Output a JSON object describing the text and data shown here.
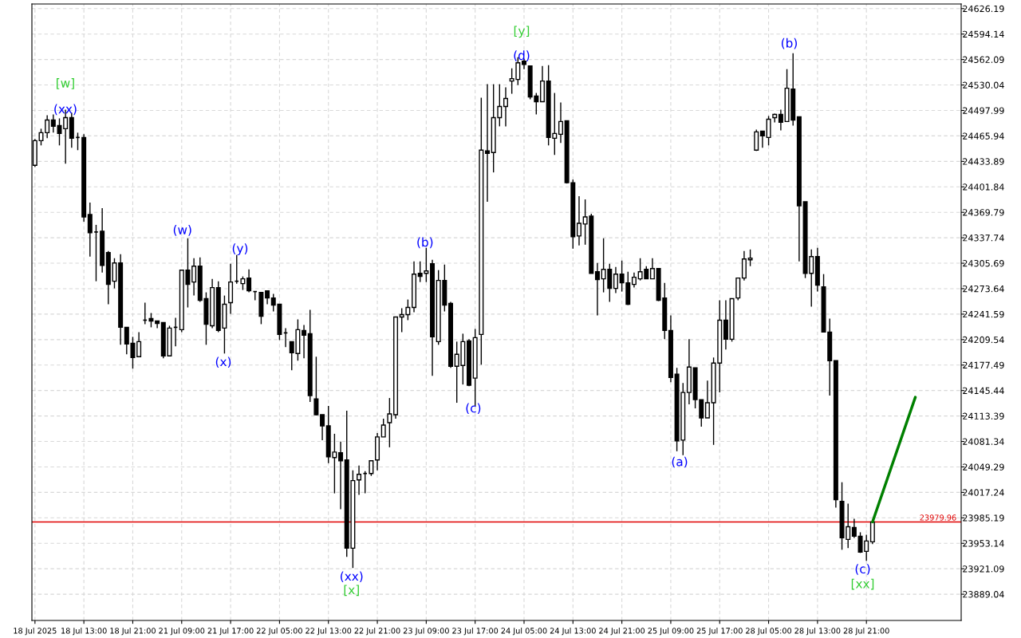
{
  "chart_data": {
    "type": "candlestick",
    "categories": [
      "18 Jul 2025",
      null,
      null,
      null,
      null,
      null,
      null,
      null,
      "18 Jul 13:00",
      null,
      null,
      null,
      null,
      null,
      null,
      null,
      "18 Jul 21:00",
      null,
      null,
      null,
      null,
      null,
      null,
      null,
      "21 Jul 09:00",
      null,
      null,
      null,
      null,
      null,
      null,
      null,
      "21 Jul 17:00",
      null,
      null,
      null,
      null,
      null,
      null,
      null,
      "22 Jul 05:00",
      null,
      null,
      null,
      null,
      null,
      null,
      null,
      "22 Jul 13:00",
      null,
      null,
      null,
      null,
      null,
      null,
      null,
      "22 Jul 21:00",
      null,
      null,
      null,
      null,
      null,
      null,
      null,
      "23 Jul 09:00",
      null,
      null,
      null,
      null,
      null,
      null,
      null,
      "23 Jul 17:00",
      null,
      null,
      null,
      null,
      null,
      null,
      null,
      "24 Jul 05:00",
      null,
      null,
      null,
      null,
      null,
      null,
      null,
      "24 Jul 13:00",
      null,
      null,
      null,
      null,
      null,
      null,
      null,
      "24 Jul 21:00",
      null,
      null,
      null,
      null,
      null,
      null,
      null,
      "25 Jul 09:00",
      null,
      null,
      null,
      null,
      null,
      null,
      null,
      "25 Jul 17:00",
      null,
      null,
      null,
      null,
      null,
      null,
      null,
      "28 Jul 05:00",
      null,
      null,
      null,
      null,
      null,
      null,
      null,
      "28 Jul 13:00",
      null,
      null,
      null,
      null,
      null,
      null,
      null,
      "28 Jul 21:00",
      null,
      null,
      null,
      null,
      null,
      null,
      null,
      null
    ],
    "ohlc": [
      [
        24429,
        24462,
        24427,
        24460
      ],
      [
        24460,
        24475,
        24454,
        24470
      ],
      [
        24470,
        24492,
        24463,
        24486
      ],
      [
        24486,
        24493,
        24470,
        24478
      ],
      [
        24479,
        24488,
        24454,
        24469
      ],
      [
        24475,
        24499,
        24431,
        24489
      ],
      [
        24489,
        24495,
        24451,
        24463
      ],
      [
        24464,
        24470,
        24448,
        24464
      ],
      [
        24464,
        24468,
        24358,
        24364
      ],
      [
        24367,
        24382,
        24314,
        24344
      ],
      [
        24345,
        24354,
        24283,
        24345
      ],
      [
        24346,
        24375,
        24294,
        24303
      ],
      [
        24319,
        24321,
        24254,
        24279
      ],
      [
        24283,
        24312,
        24274,
        24306
      ],
      [
        24306,
        24317,
        24203,
        24225
      ],
      [
        24225,
        24225,
        24191,
        24204
      ],
      [
        24205,
        24213,
        24173,
        24187
      ],
      [
        24188,
        24219,
        24188,
        24207
      ],
      [
        24234,
        24256,
        24229,
        24234
      ],
      [
        24236,
        24243,
        24225,
        24233
      ],
      [
        24233,
        24233,
        24224,
        24230
      ],
      [
        24231,
        24231,
        24186,
        24189
      ],
      [
        24189,
        24227,
        24189,
        24224
      ],
      [
        24225,
        24237,
        24201,
        24225
      ],
      [
        24222,
        24297,
        24219,
        24297
      ],
      [
        24297,
        24337,
        24250,
        24279
      ],
      [
        24282,
        24312,
        24265,
        24302
      ],
      [
        24302,
        24313,
        24257,
        24259
      ],
      [
        24261,
        24269,
        24203,
        24229
      ],
      [
        24227,
        24286,
        24224,
        24275
      ],
      [
        24275,
        24283,
        24219,
        24221
      ],
      [
        24224,
        24265,
        24192,
        24254
      ],
      [
        24256,
        24305,
        24242,
        24282
      ],
      [
        24283,
        24316,
        24280,
        24283
      ],
      [
        24280,
        24289,
        24272,
        24286
      ],
      [
        24287,
        24298,
        24269,
        24271
      ],
      [
        24270,
        24270,
        24259,
        24270
      ],
      [
        24269,
        24269,
        24229,
        24239
      ],
      [
        24271,
        24271,
        24254,
        24262
      ],
      [
        24262,
        24267,
        24245,
        24253
      ],
      [
        24254,
        24254,
        24209,
        24216
      ],
      [
        24218,
        24224,
        24200,
        24218
      ],
      [
        24207,
        24207,
        24171,
        24193
      ],
      [
        24192,
        24235,
        24183,
        24222
      ],
      [
        24221,
        24228,
        24186,
        24215
      ],
      [
        24217,
        24247,
        24131,
        24139
      ],
      [
        24135,
        24188,
        24114,
        24115
      ],
      [
        24115,
        24115,
        24083,
        24101
      ],
      [
        24101,
        24126,
        24054,
        24062
      ],
      [
        24061,
        24091,
        24016,
        24068
      ],
      [
        24067,
        24081,
        23996,
        24057
      ],
      [
        24058,
        24120,
        23936,
        23947
      ],
      [
        23947,
        24045,
        23922,
        24032
      ],
      [
        24033,
        24051,
        24014,
        24040
      ],
      [
        24041,
        24044,
        24016,
        24041
      ],
      [
        24041,
        24057,
        24038,
        24057
      ],
      [
        24058,
        24092,
        24045,
        24087
      ],
      [
        24087,
        24110,
        24087,
        24102
      ],
      [
        24105,
        24136,
        24074,
        24116
      ],
      [
        24115,
        24238,
        24110,
        24238
      ],
      [
        24238,
        24249,
        24219,
        24241
      ],
      [
        24241,
        24260,
        24234,
        24250
      ],
      [
        24250,
        24308,
        24244,
        24292
      ],
      [
        24293,
        24308,
        24282,
        24289
      ],
      [
        24293,
        24325,
        24282,
        24296
      ],
      [
        24305,
        24310,
        24164,
        24213
      ],
      [
        24207,
        24297,
        24203,
        24284
      ],
      [
        24284,
        24304,
        24245,
        24253
      ],
      [
        24255,
        24257,
        24174,
        24176
      ],
      [
        24176,
        24207,
        24130,
        24191
      ],
      [
        24177,
        24217,
        24153,
        24207
      ],
      [
        24208,
        24210,
        24151,
        24152
      ],
      [
        24161,
        24223,
        24126,
        24212
      ],
      [
        24216,
        24514,
        24178,
        24448
      ],
      [
        24447,
        24531,
        24383,
        24444
      ],
      [
        24445,
        24531,
        24420,
        24489
      ],
      [
        24489,
        24531,
        24478,
        24503
      ],
      [
        24503,
        24527,
        24478,
        24513
      ],
      [
        24535,
        24551,
        24519,
        24538
      ],
      [
        24537,
        24565,
        24530,
        24558
      ],
      [
        24560,
        24563,
        24550,
        24556
      ],
      [
        24554,
        24554,
        24512,
        24515
      ],
      [
        24516,
        24520,
        24493,
        24509
      ],
      [
        24509,
        24554,
        24509,
        24535
      ],
      [
        24535,
        24555,
        24454,
        24464
      ],
      [
        24463,
        24520,
        24442,
        24469
      ],
      [
        24468,
        24508,
        24457,
        24484
      ],
      [
        24485,
        24485,
        24406,
        24407
      ],
      [
        24407,
        24411,
        24324,
        24339
      ],
      [
        24340,
        24390,
        24328,
        24356
      ],
      [
        24355,
        24386,
        24329,
        24364
      ],
      [
        24365,
        24368,
        24293,
        24293
      ],
      [
        24295,
        24306,
        24240,
        24285
      ],
      [
        24286,
        24337,
        24269,
        24298
      ],
      [
        24298,
        24305,
        24257,
        24274
      ],
      [
        24274,
        24301,
        24268,
        24292
      ],
      [
        24292,
        24309,
        24270,
        24281
      ],
      [
        24281,
        24295,
        24253,
        24254
      ],
      [
        24279,
        24294,
        24275,
        24288
      ],
      [
        24286,
        24312,
        24284,
        24295
      ],
      [
        24298,
        24302,
        24286,
        24286
      ],
      [
        24286,
        24312,
        24286,
        24299
      ],
      [
        24299,
        24299,
        24258,
        24259
      ],
      [
        24262,
        24281,
        24210,
        24221
      ],
      [
        24221,
        24240,
        24156,
        24162
      ],
      [
        24166,
        24174,
        24069,
        24082
      ],
      [
        24083,
        24155,
        24064,
        24143
      ],
      [
        24143,
        24210,
        24128,
        24175
      ],
      [
        24174,
        24174,
        24123,
        24134
      ],
      [
        24134,
        24134,
        24100,
        24111
      ],
      [
        24111,
        24158,
        24111,
        24130
      ],
      [
        24130,
        24187,
        24077,
        24180
      ],
      [
        24180,
        24259,
        24143,
        24234
      ],
      [
        24234,
        24259,
        24197,
        24210
      ],
      [
        24210,
        24261,
        24207,
        24261
      ],
      [
        24262,
        24287,
        24259,
        24287
      ],
      [
        24287,
        24321,
        24284,
        24311
      ],
      [
        24310,
        24323,
        24302,
        24312
      ],
      [
        24448,
        24474,
        24447,
        24471
      ],
      [
        24472,
        24472,
        24451,
        24466
      ],
      [
        24464,
        24491,
        24454,
        24487
      ],
      [
        24489,
        24494,
        24483,
        24493
      ],
      [
        24493,
        24499,
        24473,
        24483
      ],
      [
        24484,
        24550,
        24484,
        24526
      ],
      [
        24525,
        24570,
        24479,
        24486
      ],
      [
        24490,
        24490,
        24308,
        24378
      ],
      [
        24383,
        24383,
        24287,
        24293
      ],
      [
        24293,
        24323,
        24251,
        24314
      ],
      [
        24314,
        24325,
        24270,
        24278
      ],
      [
        24276,
        24292,
        24219,
        24219
      ],
      [
        24219,
        24236,
        24139,
        24183
      ],
      [
        24183,
        24183,
        23998,
        24008
      ],
      [
        24006,
        24030,
        23945,
        23960
      ],
      [
        23958,
        24003,
        23947,
        23974
      ],
      [
        23973,
        23984,
        23960,
        23962
      ],
      [
        23962,
        23967,
        23941,
        23942
      ],
      [
        23943,
        23964,
        23931,
        23956
      ],
      [
        23955,
        23980,
        23952,
        23980
      ],
      null,
      null,
      null,
      null,
      null,
      null,
      null
    ],
    "series": [
      {
        "type": "line",
        "color": "#008000",
        "values": [
          null,
          null,
          null,
          null,
          null,
          null,
          null,
          null,
          null,
          null,
          null,
          null,
          null,
          null,
          null,
          null,
          null,
          null,
          null,
          null,
          null,
          null,
          null,
          null,
          null,
          null,
          null,
          null,
          null,
          null,
          null,
          null,
          null,
          null,
          null,
          null,
          null,
          null,
          null,
          null,
          null,
          null,
          null,
          null,
          null,
          null,
          null,
          null,
          null,
          null,
          null,
          null,
          null,
          null,
          null,
          null,
          null,
          null,
          null,
          null,
          null,
          null,
          null,
          null,
          null,
          null,
          null,
          null,
          null,
          null,
          null,
          null,
          null,
          null,
          null,
          null,
          null,
          null,
          null,
          null,
          null,
          null,
          null,
          null,
          null,
          null,
          null,
          null,
          null,
          null,
          null,
          null,
          null,
          null,
          null,
          null,
          null,
          null,
          null,
          null,
          null,
          null,
          null,
          null,
          null,
          null,
          null,
          null,
          null,
          null,
          null,
          null,
          null,
          null,
          null,
          null,
          null,
          null,
          null,
          null,
          null,
          null,
          null,
          null,
          null,
          null,
          null,
          null,
          null,
          null,
          null,
          null,
          null,
          null,
          null,
          null,
          null,
          23980,
          null,
          null,
          null,
          null,
          null,
          null,
          24137
        ]
      }
    ],
    "ylim": [
      23856,
      24632
    ],
    "yticks": [
      24626.19,
      24594.14,
      24562.09,
      24530.04,
      24497.99,
      24465.94,
      24433.89,
      24401.84,
      24369.79,
      24337.74,
      24305.69,
      24273.64,
      24241.59,
      24209.54,
      24177.49,
      24145.44,
      24113.39,
      24081.34,
      24049.29,
      24017.24,
      23985.19,
      23953.14,
      23921.09,
      23889.04
    ],
    "ref_lines": [
      {
        "axis": "y",
        "value": 23979.96,
        "label": "23979.96",
        "color": "#e00000"
      }
    ],
    "grid": true,
    "annotations": [
      "[w]",
      "(xx)",
      "(w)",
      "(x)",
      "(y)",
      "(xx)",
      "[x]",
      "(b)",
      "(c)",
      "[y]",
      "(d)",
      "(a)",
      "(b)",
      "(c)",
      "[xx]"
    ]
  }
}
